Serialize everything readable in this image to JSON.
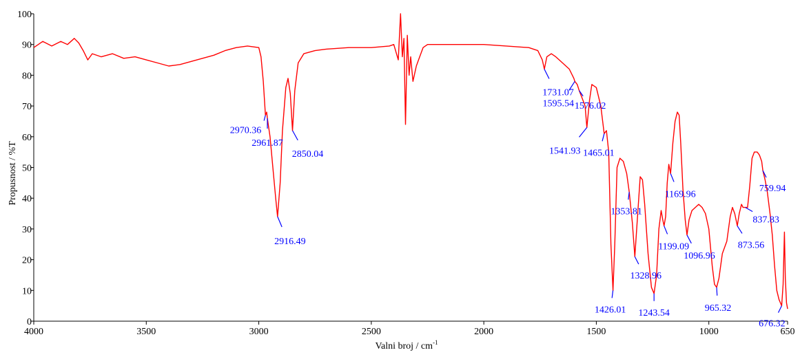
{
  "chart_data": {
    "type": "line",
    "title": "",
    "xlabel": "Valni broj / cm",
    "xlabel_superscript": "-1",
    "ylabel": "Propusnost / %T",
    "xlim": [
      4000,
      650
    ],
    "ylim": [
      0,
      100
    ],
    "x_reversed": true,
    "grid": false,
    "legend": "none",
    "xticks": [
      4000,
      3500,
      3000,
      2500,
      2000,
      1500,
      1000,
      650
    ],
    "xtick_labels": [
      "4000",
      "3500",
      "3000",
      "2500",
      "2000",
      "1500",
      "1000",
      "650"
    ],
    "yticks": [
      0,
      10,
      20,
      30,
      40,
      50,
      60,
      70,
      80,
      90,
      100
    ],
    "ytick_labels": [
      "0",
      "10",
      "20",
      "30",
      "40",
      "50",
      "60",
      "70",
      "80",
      "90",
      "100"
    ],
    "series": [
      {
        "color": "#ff0000",
        "points": [
          [
            4000,
            89
          ],
          [
            3960,
            91
          ],
          [
            3920,
            89.5
          ],
          [
            3880,
            91
          ],
          [
            3850,
            90
          ],
          [
            3820,
            92
          ],
          [
            3800,
            90.5
          ],
          [
            3780,
            88
          ],
          [
            3760,
            85
          ],
          [
            3740,
            87
          ],
          [
            3700,
            86
          ],
          [
            3650,
            87
          ],
          [
            3600,
            85.5
          ],
          [
            3550,
            86
          ],
          [
            3500,
            85
          ],
          [
            3450,
            84
          ],
          [
            3400,
            83
          ],
          [
            3350,
            83.5
          ],
          [
            3300,
            84.5
          ],
          [
            3250,
            85.5
          ],
          [
            3200,
            86.5
          ],
          [
            3150,
            88
          ],
          [
            3100,
            89
          ],
          [
            3050,
            89.5
          ],
          [
            3000,
            89
          ],
          [
            2990,
            86
          ],
          [
            2980,
            78
          ],
          [
            2970.36,
            67
          ],
          [
            2965,
            68
          ],
          [
            2961.87,
            66
          ],
          [
            2950,
            60
          ],
          [
            2935,
            48
          ],
          [
            2925,
            40
          ],
          [
            2916.49,
            34
          ],
          [
            2905,
            45
          ],
          [
            2895,
            62
          ],
          [
            2880,
            76
          ],
          [
            2870,
            79
          ],
          [
            2860,
            74
          ],
          [
            2850.04,
            62
          ],
          [
            2840,
            75
          ],
          [
            2825,
            84
          ],
          [
            2800,
            87
          ],
          [
            2750,
            88
          ],
          [
            2700,
            88.5
          ],
          [
            2600,
            89
          ],
          [
            2500,
            89
          ],
          [
            2420,
            89.5
          ],
          [
            2400,
            90
          ],
          [
            2380,
            85
          ],
          [
            2370,
            100
          ],
          [
            2362,
            86
          ],
          [
            2355,
            92
          ],
          [
            2348,
            64
          ],
          [
            2340,
            93
          ],
          [
            2332,
            80
          ],
          [
            2325,
            86
          ],
          [
            2315,
            78
          ],
          [
            2300,
            83
          ],
          [
            2290,
            85
          ],
          [
            2270,
            89
          ],
          [
            2250,
            90
          ],
          [
            2200,
            90
          ],
          [
            2100,
            90
          ],
          [
            2000,
            90
          ],
          [
            1900,
            89.5
          ],
          [
            1800,
            89
          ],
          [
            1760,
            88
          ],
          [
            1740,
            85
          ],
          [
            1731.07,
            82
          ],
          [
            1720,
            86
          ],
          [
            1700,
            87
          ],
          [
            1680,
            86
          ],
          [
            1650,
            84
          ],
          [
            1620,
            82
          ],
          [
            1600,
            79
          ],
          [
            1595.54,
            78
          ],
          [
            1585,
            77
          ],
          [
            1576.02,
            75
          ],
          [
            1560,
            72
          ],
          [
            1550,
            70
          ],
          [
            1541.93,
            63
          ],
          [
            1530,
            72
          ],
          [
            1520,
            77
          ],
          [
            1500,
            76
          ],
          [
            1480,
            70
          ],
          [
            1465.01,
            61
          ],
          [
            1455,
            62
          ],
          [
            1445,
            55
          ],
          [
            1435,
            25
          ],
          [
            1426.01,
            10
          ],
          [
            1418,
            25
          ],
          [
            1408,
            50
          ],
          [
            1395,
            53
          ],
          [
            1380,
            52
          ],
          [
            1365,
            48
          ],
          [
            1353.81,
            42
          ],
          [
            1340,
            32
          ],
          [
            1328.96,
            21
          ],
          [
            1315,
            36
          ],
          [
            1305,
            47
          ],
          [
            1295,
            46
          ],
          [
            1285,
            38
          ],
          [
            1270,
            22
          ],
          [
            1255,
            11
          ],
          [
            1243.54,
            9
          ],
          [
            1232,
            15
          ],
          [
            1222,
            30
          ],
          [
            1212,
            36
          ],
          [
            1205,
            33
          ],
          [
            1199.09,
            31
          ],
          [
            1192,
            34
          ],
          [
            1185,
            45
          ],
          [
            1178,
            51
          ],
          [
            1169.96,
            48
          ],
          [
            1160,
            58
          ],
          [
            1150,
            65
          ],
          [
            1140,
            68
          ],
          [
            1132,
            67
          ],
          [
            1125,
            58
          ],
          [
            1115,
            43
          ],
          [
            1105,
            33
          ],
          [
            1096.96,
            28
          ],
          [
            1088,
            33
          ],
          [
            1075,
            36
          ],
          [
            1060,
            37
          ],
          [
            1045,
            38
          ],
          [
            1030,
            37
          ],
          [
            1015,
            35
          ],
          [
            1000,
            30
          ],
          [
            985,
            18
          ],
          [
            975,
            12
          ],
          [
            965.32,
            11
          ],
          [
            955,
            14
          ],
          [
            940,
            22
          ],
          [
            920,
            26
          ],
          [
            905,
            34
          ],
          [
            895,
            37
          ],
          [
            885,
            35
          ],
          [
            873.56,
            31
          ],
          [
            865,
            35
          ],
          [
            855,
            38
          ],
          [
            848,
            37
          ],
          [
            837.83,
            37
          ],
          [
            828,
            37
          ],
          [
            818,
            44
          ],
          [
            808,
            53
          ],
          [
            798,
            55
          ],
          [
            785,
            55
          ],
          [
            775,
            54
          ],
          [
            765,
            52
          ],
          [
            759.94,
            49
          ],
          [
            750,
            46
          ],
          [
            740,
            42
          ],
          [
            728,
            35
          ],
          [
            718,
            28
          ],
          [
            708,
            18
          ],
          [
            698,
            10
          ],
          [
            688,
            7
          ],
          [
            676.32,
            5
          ],
          [
            670,
            12
          ],
          [
            664,
            29
          ],
          [
            660,
            14
          ],
          [
            655,
            6
          ],
          [
            650,
            4
          ]
        ]
      }
    ],
    "annotations": [
      {
        "text": "2970.36",
        "x": 2970.36,
        "y": 67
      },
      {
        "text": "2961.87",
        "x": 2961.87,
        "y": 66
      },
      {
        "text": "2850.04",
        "x": 2850.04,
        "y": 62
      },
      {
        "text": "2916.49",
        "x": 2916.49,
        "y": 34
      },
      {
        "text": "1731.07",
        "x": 1731.07,
        "y": 82
      },
      {
        "text": "1595.54",
        "x": 1595.54,
        "y": 78
      },
      {
        "text": "1576.02",
        "x": 1576.02,
        "y": 75
      },
      {
        "text": "1541.93",
        "x": 1541.93,
        "y": 63
      },
      {
        "text": "1465.01",
        "x": 1465.01,
        "y": 61
      },
      {
        "text": "1353.81",
        "x": 1353.81,
        "y": 42
      },
      {
        "text": "1328.96",
        "x": 1328.96,
        "y": 21
      },
      {
        "text": "1426.01",
        "x": 1426.01,
        "y": 10
      },
      {
        "text": "1243.54",
        "x": 1243.54,
        "y": 9
      },
      {
        "text": "1169.96",
        "x": 1169.96,
        "y": 48
      },
      {
        "text": "1199.09",
        "x": 1199.09,
        "y": 31
      },
      {
        "text": "1096.96",
        "x": 1096.96,
        "y": 28
      },
      {
        "text": "965.32",
        "x": 965.32,
        "y": 11
      },
      {
        "text": "759.94",
        "x": 759.94,
        "y": 49
      },
      {
        "text": "837.83",
        "x": 837.83,
        "y": 37
      },
      {
        "text": "873.56",
        "x": 873.56,
        "y": 31
      },
      {
        "text": "676.32",
        "x": 676.32,
        "y": 5
      }
    ],
    "colors": {
      "line": "#ff0000",
      "annotation_text": "#0000ff",
      "leader": "#0000ff",
      "axes": "#000000"
    }
  }
}
